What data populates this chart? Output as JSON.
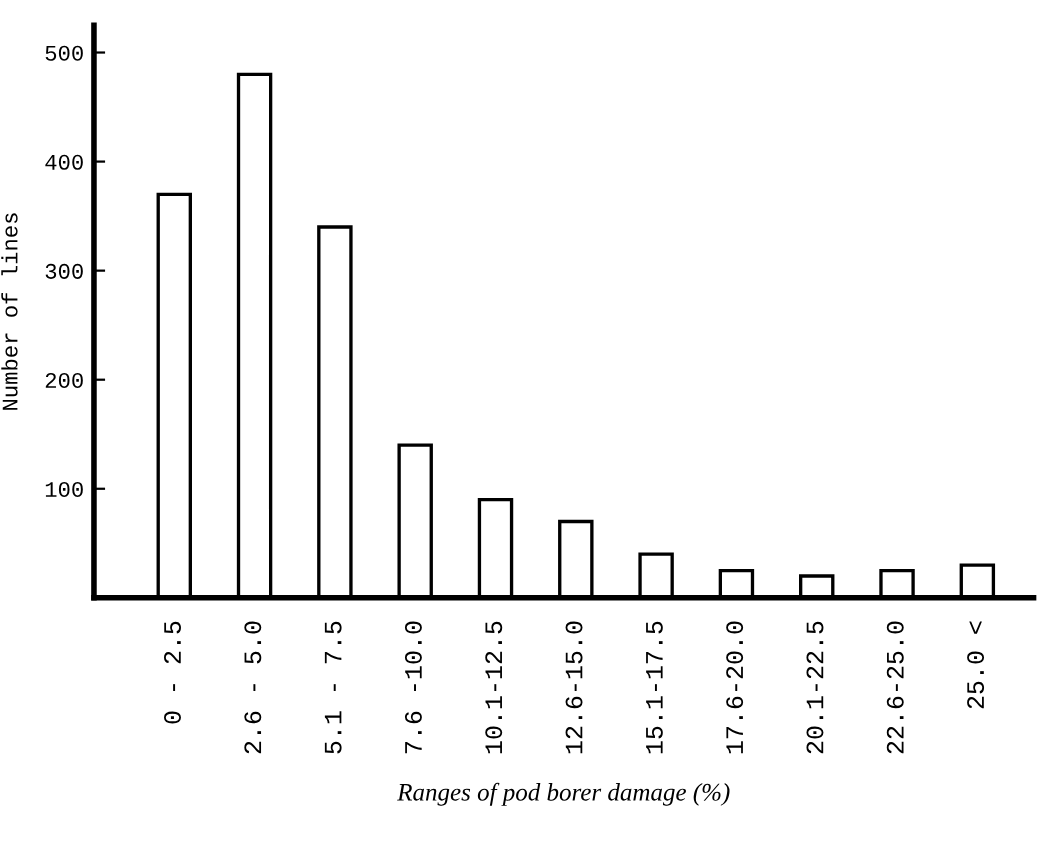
{
  "chart_data": {
    "type": "bar",
    "categories": [
      "0 - 2.5",
      "2.6 - 5.0",
      "5.1 - 7.5",
      "7.6 -10.0",
      "10.1-12.5",
      "12.6-15.0",
      "15.1-17.5",
      "17.6-20.0",
      "20.1-22.5",
      "22.6-25.0",
      "25.0 <"
    ],
    "values": [
      370,
      480,
      340,
      140,
      90,
      70,
      40,
      25,
      20,
      25,
      30
    ],
    "color": "#ffffff",
    "xlabel": "Ranges of pod borer damage (%)",
    "ylabel": "Number of lines",
    "ylim": [
      0,
      525
    ],
    "yticks": [
      100,
      200,
      300,
      400,
      500
    ],
    "grid": false,
    "legend": false
  }
}
